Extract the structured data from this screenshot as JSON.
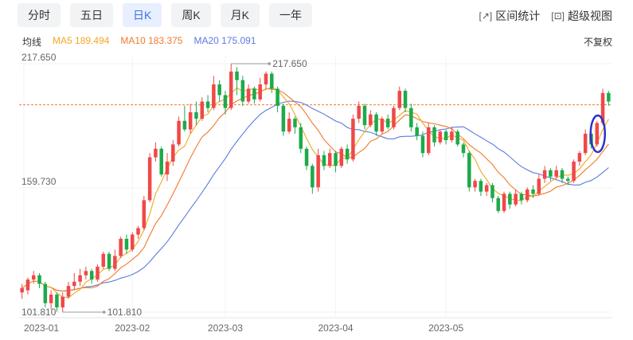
{
  "tabs": [
    {
      "label": "分时",
      "active": false
    },
    {
      "label": "五日",
      "active": false
    },
    {
      "label": "日K",
      "active": true
    },
    {
      "label": "周K",
      "active": false
    },
    {
      "label": "月K",
      "active": false
    },
    {
      "label": "一年",
      "active": false
    }
  ],
  "tools": {
    "range_stats": "区间统计",
    "super_view": "超级视图"
  },
  "ma": {
    "label": "均线",
    "ma5": "MA5 189.494",
    "ma10": "MA10 183.375",
    "ma20": "MA20 175.091"
  },
  "fuquan": "不复权",
  "colors": {
    "up": "#f04848",
    "down": "#1daa4a",
    "ma5": "#f5a623",
    "ma10": "#f07a2a",
    "ma20": "#5b7ae0",
    "ref_line": "#f07a2a",
    "highlight": "#2d32c8"
  },
  "chart_data": {
    "type": "candlestick",
    "y_tick_labels": [
      "217.650",
      "159.730",
      "101.810"
    ],
    "ylim": [
      101.81,
      217.65
    ],
    "x_tick_labels": [
      "2023-01",
      "2023-02",
      "2023-03",
      "2023-04",
      "2023-05"
    ],
    "high_label": "217.650",
    "low_label": "101.810",
    "ref_price": 198.5,
    "candles": [
      {
        "o": 111,
        "c": 113,
        "h": 115,
        "l": 108
      },
      {
        "o": 112,
        "c": 117,
        "h": 118,
        "l": 110
      },
      {
        "o": 117,
        "c": 119,
        "h": 121,
        "l": 115
      },
      {
        "o": 119,
        "c": 115,
        "h": 120,
        "l": 113
      },
      {
        "o": 115,
        "c": 106,
        "h": 116,
        "l": 104
      },
      {
        "o": 106,
        "c": 110,
        "h": 112,
        "l": 103
      },
      {
        "o": 110,
        "c": 104,
        "h": 111,
        "l": 102
      },
      {
        "o": 104,
        "c": 109,
        "h": 111,
        "l": 101.81
      },
      {
        "o": 109,
        "c": 114,
        "h": 116,
        "l": 108
      },
      {
        "o": 114,
        "c": 116,
        "h": 120,
        "l": 112
      },
      {
        "o": 116,
        "c": 119,
        "h": 122,
        "l": 114
      },
      {
        "o": 119,
        "c": 121,
        "h": 123,
        "l": 117
      },
      {
        "o": 121,
        "c": 117,
        "h": 122,
        "l": 115
      },
      {
        "o": 117,
        "c": 123,
        "h": 124,
        "l": 116
      },
      {
        "o": 123,
        "c": 129,
        "h": 130,
        "l": 122
      },
      {
        "o": 129,
        "c": 122,
        "h": 130,
        "l": 121
      },
      {
        "o": 122,
        "c": 128,
        "h": 131,
        "l": 121
      },
      {
        "o": 128,
        "c": 136,
        "h": 137,
        "l": 127
      },
      {
        "o": 136,
        "c": 131,
        "h": 138,
        "l": 129
      },
      {
        "o": 131,
        "c": 138,
        "h": 139,
        "l": 130
      },
      {
        "o": 138,
        "c": 141,
        "h": 142,
        "l": 136
      },
      {
        "o": 141,
        "c": 154,
        "h": 156,
        "l": 140
      },
      {
        "o": 154,
        "c": 174,
        "h": 176,
        "l": 153
      },
      {
        "o": 174,
        "c": 178,
        "h": 181,
        "l": 172
      },
      {
        "o": 178,
        "c": 166,
        "h": 179,
        "l": 165
      },
      {
        "o": 166,
        "c": 172,
        "h": 176,
        "l": 163
      },
      {
        "o": 172,
        "c": 180,
        "h": 182,
        "l": 170
      },
      {
        "o": 180,
        "c": 191,
        "h": 193,
        "l": 179
      },
      {
        "o": 191,
        "c": 187,
        "h": 198,
        "l": 186
      },
      {
        "o": 187,
        "c": 195,
        "h": 199,
        "l": 185
      },
      {
        "o": 195,
        "c": 192,
        "h": 200,
        "l": 189
      },
      {
        "o": 192,
        "c": 200,
        "h": 202,
        "l": 191
      },
      {
        "o": 200,
        "c": 197,
        "h": 203,
        "l": 195
      },
      {
        "o": 197,
        "c": 208,
        "h": 212,
        "l": 196
      },
      {
        "o": 208,
        "c": 203,
        "h": 210,
        "l": 200
      },
      {
        "o": 203,
        "c": 197,
        "h": 205,
        "l": 194
      },
      {
        "o": 197,
        "c": 214,
        "h": 217.65,
        "l": 196
      },
      {
        "o": 214,
        "c": 210,
        "h": 216,
        "l": 203
      },
      {
        "o": 210,
        "c": 200,
        "h": 212,
        "l": 198
      },
      {
        "o": 200,
        "c": 206,
        "h": 208,
        "l": 199
      },
      {
        "o": 206,
        "c": 201,
        "h": 207,
        "l": 199
      },
      {
        "o": 201,
        "c": 208,
        "h": 211,
        "l": 200
      },
      {
        "o": 208,
        "c": 213,
        "h": 214,
        "l": 206
      },
      {
        "o": 213,
        "c": 206,
        "h": 214,
        "l": 204
      },
      {
        "o": 206,
        "c": 198,
        "h": 207,
        "l": 195
      },
      {
        "o": 198,
        "c": 186,
        "h": 199,
        "l": 184
      },
      {
        "o": 186,
        "c": 192,
        "h": 195,
        "l": 185
      },
      {
        "o": 192,
        "c": 188,
        "h": 193,
        "l": 185
      },
      {
        "o": 188,
        "c": 178,
        "h": 190,
        "l": 176
      },
      {
        "o": 178,
        "c": 170,
        "h": 179,
        "l": 168
      },
      {
        "o": 170,
        "c": 160,
        "h": 171,
        "l": 157
      },
      {
        "o": 160,
        "c": 175,
        "h": 178,
        "l": 158
      },
      {
        "o": 175,
        "c": 170,
        "h": 177,
        "l": 168
      },
      {
        "o": 170,
        "c": 176,
        "h": 178,
        "l": 169
      },
      {
        "o": 176,
        "c": 170,
        "h": 177,
        "l": 167
      },
      {
        "o": 170,
        "c": 178,
        "h": 179,
        "l": 169
      },
      {
        "o": 178,
        "c": 173,
        "h": 180,
        "l": 171
      },
      {
        "o": 173,
        "c": 192,
        "h": 194,
        "l": 172
      },
      {
        "o": 192,
        "c": 198,
        "h": 200,
        "l": 190
      },
      {
        "o": 198,
        "c": 189,
        "h": 199,
        "l": 187
      },
      {
        "o": 189,
        "c": 194,
        "h": 196,
        "l": 188
      },
      {
        "o": 194,
        "c": 186,
        "h": 195,
        "l": 184
      },
      {
        "o": 186,
        "c": 192,
        "h": 193,
        "l": 185
      },
      {
        "o": 192,
        "c": 188,
        "h": 194,
        "l": 187
      },
      {
        "o": 188,
        "c": 197,
        "h": 198,
        "l": 187
      },
      {
        "o": 197,
        "c": 205,
        "h": 207,
        "l": 196
      },
      {
        "o": 205,
        "c": 197,
        "h": 206,
        "l": 195
      },
      {
        "o": 197,
        "c": 188,
        "h": 199,
        "l": 186
      },
      {
        "o": 188,
        "c": 184,
        "h": 190,
        "l": 182
      },
      {
        "o": 184,
        "c": 176,
        "h": 186,
        "l": 174
      },
      {
        "o": 176,
        "c": 188,
        "h": 190,
        "l": 175
      },
      {
        "o": 188,
        "c": 181,
        "h": 189,
        "l": 179
      },
      {
        "o": 181,
        "c": 186,
        "h": 187,
        "l": 180
      },
      {
        "o": 186,
        "c": 182,
        "h": 187,
        "l": 180
      },
      {
        "o": 182,
        "c": 186,
        "h": 188,
        "l": 181
      },
      {
        "o": 186,
        "c": 180,
        "h": 187,
        "l": 179
      },
      {
        "o": 180,
        "c": 176,
        "h": 181,
        "l": 174
      },
      {
        "o": 176,
        "c": 160,
        "h": 177,
        "l": 158
      },
      {
        "o": 160,
        "c": 163,
        "h": 164,
        "l": 158
      },
      {
        "o": 163,
        "c": 158,
        "h": 164,
        "l": 156
      },
      {
        "o": 158,
        "c": 161,
        "h": 162,
        "l": 156
      },
      {
        "o": 161,
        "c": 155,
        "h": 162,
        "l": 153
      },
      {
        "o": 155,
        "c": 149,
        "h": 156,
        "l": 148
      },
      {
        "o": 149,
        "c": 157,
        "h": 158,
        "l": 148
      },
      {
        "o": 157,
        "c": 152,
        "h": 158,
        "l": 150
      },
      {
        "o": 152,
        "c": 157,
        "h": 159,
        "l": 151
      },
      {
        "o": 157,
        "c": 154,
        "h": 158,
        "l": 152
      },
      {
        "o": 154,
        "c": 159,
        "h": 160,
        "l": 153
      },
      {
        "o": 159,
        "c": 157,
        "h": 161,
        "l": 155
      },
      {
        "o": 157,
        "c": 164,
        "h": 166,
        "l": 156
      },
      {
        "o": 164,
        "c": 168,
        "h": 170,
        "l": 162
      },
      {
        "o": 168,
        "c": 165,
        "h": 169,
        "l": 163
      },
      {
        "o": 165,
        "c": 168,
        "h": 170,
        "l": 164
      },
      {
        "o": 168,
        "c": 164,
        "h": 169,
        "l": 162
      },
      {
        "o": 164,
        "c": 163,
        "h": 165,
        "l": 161
      },
      {
        "o": 163,
        "c": 172,
        "h": 173,
        "l": 162
      },
      {
        "o": 172,
        "c": 176,
        "h": 177,
        "l": 170
      },
      {
        "o": 176,
        "c": 185,
        "h": 187,
        "l": 175
      },
      {
        "o": 185,
        "c": 180,
        "h": 186,
        "l": 178
      },
      {
        "o": 180,
        "c": 190,
        "h": 191,
        "l": 179
      },
      {
        "o": 190,
        "c": 204,
        "h": 206,
        "l": 189
      },
      {
        "o": 204,
        "c": 200,
        "h": 205,
        "l": 198
      }
    ]
  }
}
